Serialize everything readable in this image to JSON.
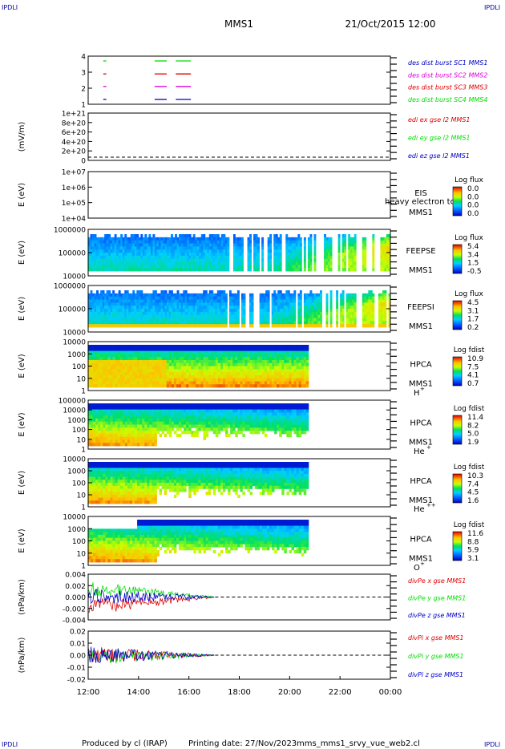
{
  "corner_labels": {
    "top_left": "IPDLI",
    "top_right": "IPDLI",
    "bottom_left": "IPDLI",
    "bottom_right": "IPDLI"
  },
  "header": {
    "spacecraft": "MMS1",
    "date": "21/Oct/2015 12:00"
  },
  "footer": {
    "produced_by": "Produced by cl (IRAP)",
    "printing_date": "Printing date: 27/Nov/2023",
    "filename": "mms_mms1_srvy_vue_web2.cl"
  },
  "x_axis": {
    "ticks": [
      "12:00",
      "14:00",
      "16:00",
      "18:00",
      "20:00",
      "22:00",
      "00:00"
    ]
  },
  "colors": {
    "red": "#e00000",
    "green": "#00dd00",
    "blue": "#0000c8",
    "magenta": "#dd00dd",
    "dark": "#000080"
  },
  "chart_data": [
    {
      "id": "burst",
      "type": "line",
      "ylabel": "",
      "yticks": [
        "4",
        "3",
        "2",
        "1"
      ],
      "legend": [
        {
          "label": "des dist burst SC1 MMS1",
          "color": "#0000c8"
        },
        {
          "label": "des dist burst SC2 MMS2",
          "color": "#dd00dd"
        },
        {
          "label": "des dist burst SC3 MMS3",
          "color": "#e00000"
        },
        {
          "label": "des dist burst SC4 MMS4",
          "color": "#00dd00"
        }
      ]
    },
    {
      "id": "edi",
      "type": "line",
      "ylabel": "(mV/m)",
      "yticks": [
        "1e+21",
        "8e+20",
        "6e+20",
        "4e+20",
        "2e+20",
        "0"
      ],
      "legend": [
        {
          "label": "edi ex gse l2 MMS1",
          "color": "#e00000"
        },
        {
          "label": "edi ey gse l2 MMS1",
          "color": "#00dd00"
        },
        {
          "label": "edi ez gse l2 MMS1",
          "color": "#0000c8"
        }
      ]
    },
    {
      "id": "eis",
      "type": "heatmap",
      "ylabel": "E (eV)",
      "yticks": [
        "1e+07",
        "1e+06",
        "1e+05",
        "1e+04"
      ],
      "instrument": "EIS",
      "spacecraft": "MMS1",
      "overlay": "heavy electron to",
      "colorbar_title": "Log flux",
      "colorbar_values": [
        "0.0",
        "0.0",
        "0.0",
        "0.0"
      ]
    },
    {
      "id": "feepse",
      "type": "heatmap",
      "ylabel": "E (eV)",
      "yticks": [
        "1000000",
        "100000",
        "10000"
      ],
      "instrument": "FEEPSE",
      "spacecraft": "MMS1",
      "colorbar_title": "Log flux",
      "colorbar_values": [
        "5.4",
        "3.4",
        "1.5",
        "-0.5"
      ]
    },
    {
      "id": "feepsi",
      "type": "heatmap",
      "ylabel": "E (eV)",
      "yticks": [
        "1000000",
        "100000",
        "10000"
      ],
      "instrument": "FEEPSI",
      "spacecraft": "MMS1",
      "colorbar_title": "Log flux",
      "colorbar_values": [
        "4.5",
        "3.1",
        "1.7",
        "0.2"
      ]
    },
    {
      "id": "hpca_h",
      "type": "heatmap",
      "ylabel": "E (eV)",
      "yticks": [
        "10000",
        "1000",
        "100",
        "10",
        "1"
      ],
      "instrument": "HPCA",
      "spacecraft": "MMS1",
      "species": "H",
      "charge": "+",
      "colorbar_title": "Log fdist",
      "colorbar_values": [
        "10.9",
        "7.5",
        "4.1",
        "0.7"
      ]
    },
    {
      "id": "hpca_he",
      "type": "heatmap",
      "ylabel": "E (eV)",
      "yticks": [
        "100000",
        "10000",
        "1000",
        "100",
        "10",
        "1"
      ],
      "instrument": "HPCA",
      "spacecraft": "MMS1",
      "species": "He",
      "charge": "+",
      "colorbar_title": "Log fdist",
      "colorbar_values": [
        "11.4",
        "8.2",
        "5.0",
        "1.9"
      ]
    },
    {
      "id": "hpca_he2",
      "type": "heatmap",
      "ylabel": "E (eV)",
      "yticks": [
        "10000",
        "1000",
        "100",
        "10",
        "1"
      ],
      "instrument": "HPCA",
      "spacecraft": "MMS1",
      "species": "He",
      "charge": "++",
      "colorbar_title": "Log fdist",
      "colorbar_values": [
        "10.3",
        "7.4",
        "4.5",
        "1.6"
      ]
    },
    {
      "id": "hpca_o",
      "type": "heatmap",
      "ylabel": "E (eV)",
      "yticks": [
        "10000",
        "1000",
        "100",
        "10",
        "1"
      ],
      "instrument": "HPCA",
      "spacecraft": "MMS1",
      "species": "O",
      "charge": "+",
      "colorbar_title": "Log fdist",
      "colorbar_values": [
        "11.6",
        "8.8",
        "5.9",
        "3.1"
      ]
    },
    {
      "id": "divpe",
      "type": "line",
      "ylabel": "(nPa/km)",
      "yticks": [
        "0.004",
        "0.002",
        "0.000",
        "-0.002",
        "-0.004"
      ],
      "legend": [
        {
          "label": "divPe x gse MMS1",
          "color": "#e00000"
        },
        {
          "label": "divPe y gse MMS1",
          "color": "#00dd00"
        },
        {
          "label": "divPe z gse MMS1",
          "color": "#0000c8"
        }
      ]
    },
    {
      "id": "divpi",
      "type": "line",
      "ylabel": "(nPa/km)",
      "yticks": [
        "0.02",
        "0.01",
        "0.00",
        "-0.01",
        "-0.02"
      ],
      "legend": [
        {
          "label": "divPi x gse MMS1",
          "color": "#e00000"
        },
        {
          "label": "divPi y gse MMS1",
          "color": "#00dd00"
        },
        {
          "label": "divPi z gse MMS1",
          "color": "#0000c8"
        }
      ]
    }
  ]
}
